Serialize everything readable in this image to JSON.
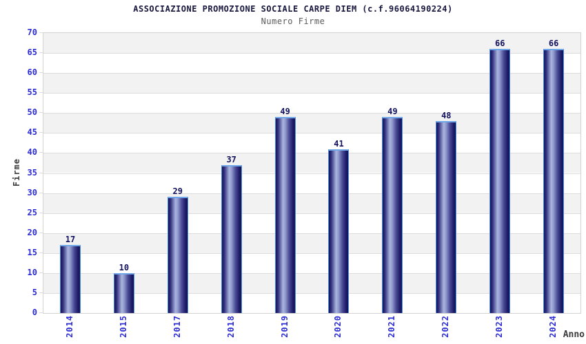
{
  "chart_data": {
    "type": "bar",
    "title": "ASSOCIAZIONE PROMOZIONE SOCIALE CARPE DIEM (c.f.96064190224)",
    "subtitle": "Numero Firme",
    "xlabel": "Anno",
    "ylabel": "Firme",
    "categories": [
      "2014",
      "2015",
      "2017",
      "2018",
      "2019",
      "2020",
      "2021",
      "2022",
      "2023",
      "2024"
    ],
    "values": [
      17,
      10,
      29,
      37,
      49,
      41,
      49,
      48,
      66,
      66
    ],
    "ylim": [
      0,
      70
    ],
    "ytick_step": 5,
    "yticks": [
      0,
      5,
      10,
      15,
      20,
      25,
      30,
      35,
      40,
      45,
      50,
      55,
      60,
      65,
      70
    ],
    "grid": true,
    "legend": null,
    "colors": {
      "title": "#16163e",
      "subtitle": "#5a5a5a",
      "tick_label": "#2b2bd4",
      "value_label": "#12125e",
      "axis_label": "#3a3a3a",
      "band_gray": "#f2f2f2",
      "gridline": "#dcdcdc",
      "plot_border": "#d3d3d3",
      "bar_dark": "#14145c",
      "bar_light": "#abb5df",
      "bar_border": "#4f8fdc",
      "bar_top_highlight": "#6fa6e8"
    }
  }
}
